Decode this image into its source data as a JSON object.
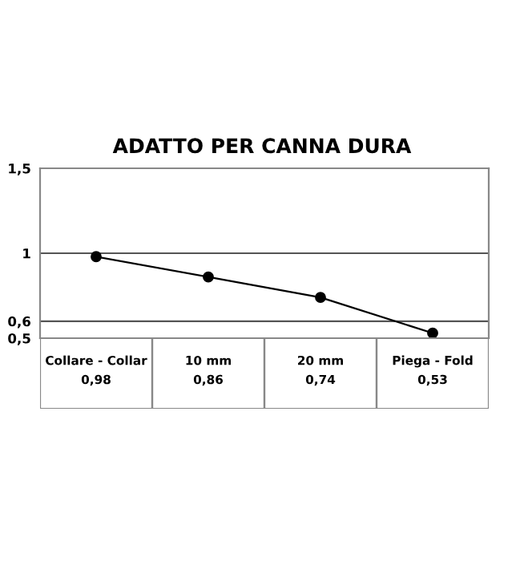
{
  "chart_data": {
    "type": "line",
    "title": "ADATTO PER CANNA DURA",
    "categories": [
      "Collare - Collar",
      "10 mm",
      "20 mm",
      "Piega - Fold"
    ],
    "series": [
      {
        "color": "#000000",
        "values": [
          0.98,
          0.86,
          0.74,
          0.53
        ],
        "value_labels": [
          "0,98",
          "0,86",
          "0,74",
          "0,53"
        ]
      }
    ],
    "ylim": [
      0.5,
      1.5
    ],
    "yticks": [
      {
        "value": 0.5,
        "label": "0,5"
      },
      {
        "value": 0.6,
        "label": "0,6"
      },
      {
        "value": 1,
        "label": "1"
      },
      {
        "value": 1.5,
        "label": "1,5"
      }
    ],
    "grid": "y",
    "marker": "circle",
    "line_style": "solid",
    "legend": false
  }
}
